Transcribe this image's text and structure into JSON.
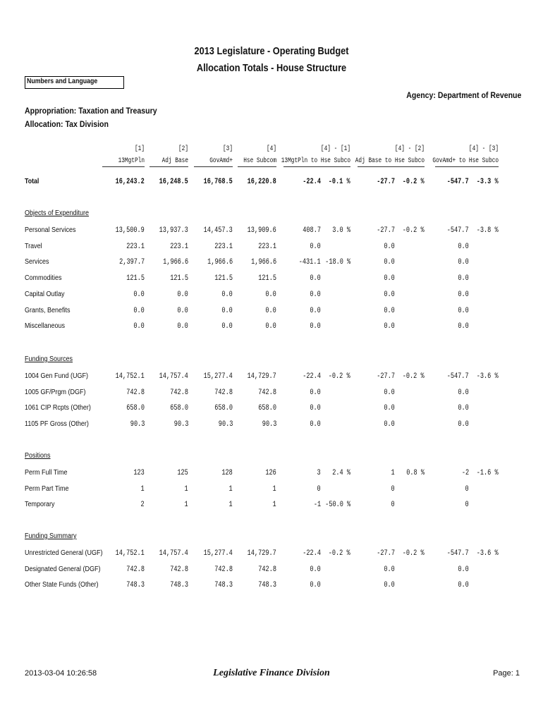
{
  "header": {
    "title": "2013 Legislature - Operating Budget",
    "subtitle": "Allocation Totals - House Structure",
    "box_label": "Numbers and Language",
    "agency": "Agency: Department of Revenue",
    "appropriation": "Appropriation: Taxation and Treasury",
    "allocation": "Allocation: Tax Division"
  },
  "columns": [
    {
      "index": "[1]",
      "name": "13MgtPln"
    },
    {
      "index": "[2]",
      "name": "Adj Base"
    },
    {
      "index": "[3]",
      "name": "GovAmd+"
    },
    {
      "index": "[4]",
      "name": "Hse Subcom"
    },
    {
      "index": "[4] - [1]",
      "name": "13MgtPln to Hse Subco"
    },
    {
      "index": "[4] - [2]",
      "name": "Adj Base to Hse Subco"
    },
    {
      "index": "[4] - [3]",
      "name": "GovAmd+ to Hse Subco"
    }
  ],
  "total": {
    "label": "Total",
    "cells": [
      "16,243.2",
      "16,248.5",
      "16,768.5",
      "16,220.8",
      "-22.4",
      "-0.1 %",
      "-27.7",
      "-0.2 %",
      "-547.7",
      "-3.3 %"
    ]
  },
  "sections": [
    {
      "title": "Objects of Expenditure",
      "rows": [
        {
          "label": "Personal Services",
          "cells": [
            "13,500.9",
            "13,937.3",
            "14,457.3",
            "13,909.6",
            "408.7",
            "3.0 %",
            "-27.7",
            "-0.2 %",
            "-547.7",
            "-3.8 %"
          ]
        },
        {
          "label": "Travel",
          "cells": [
            "223.1",
            "223.1",
            "223.1",
            "223.1",
            "0.0",
            null,
            "0.0",
            null,
            "0.0",
            null
          ]
        },
        {
          "label": "Services",
          "cells": [
            "2,397.7",
            "1,966.6",
            "1,966.6",
            "1,966.6",
            "-431.1",
            "-18.0 %",
            "0.0",
            null,
            "0.0",
            null
          ]
        },
        {
          "label": "Commodities",
          "cells": [
            "121.5",
            "121.5",
            "121.5",
            "121.5",
            "0.0",
            null,
            "0.0",
            null,
            "0.0",
            null
          ]
        },
        {
          "label": "Capital Outlay",
          "cells": [
            "0.0",
            "0.0",
            "0.0",
            "0.0",
            "0.0",
            null,
            "0.0",
            null,
            "0.0",
            null
          ]
        },
        {
          "label": "Grants, Benefits",
          "cells": [
            "0.0",
            "0.0",
            "0.0",
            "0.0",
            "0.0",
            null,
            "0.0",
            null,
            "0.0",
            null
          ]
        },
        {
          "label": "Miscellaneous",
          "cells": [
            "0.0",
            "0.0",
            "0.0",
            "0.0",
            "0.0",
            null,
            "0.0",
            null,
            "0.0",
            null
          ]
        }
      ]
    },
    {
      "title": "Funding Sources",
      "rows": [
        {
          "label": "1004 Gen Fund (UGF)",
          "cells": [
            "14,752.1",
            "14,757.4",
            "15,277.4",
            "14,729.7",
            "-22.4",
            "-0.2 %",
            "-27.7",
            "-0.2 %",
            "-547.7",
            "-3.6 %"
          ]
        },
        {
          "label": "1005 GF/Prgm (DGF)",
          "cells": [
            "742.8",
            "742.8",
            "742.8",
            "742.8",
            "0.0",
            null,
            "0.0",
            null,
            "0.0",
            null
          ]
        },
        {
          "label": "1061 CIP Rcpts (Other)",
          "cells": [
            "658.0",
            "658.0",
            "658.0",
            "658.0",
            "0.0",
            null,
            "0.0",
            null,
            "0.0",
            null
          ]
        },
        {
          "label": "1105 PF Gross (Other)",
          "cells": [
            "90.3",
            "90.3",
            "90.3",
            "90.3",
            "0.0",
            null,
            "0.0",
            null,
            "0.0",
            null
          ]
        }
      ]
    },
    {
      "title": "Positions",
      "rows": [
        {
          "label": "Perm Full Time",
          "cells": [
            "123",
            "125",
            "128",
            "126",
            "3",
            "2.4 %",
            "1",
            "0.8 %",
            "-2",
            "-1.6 %"
          ]
        },
        {
          "label": "Perm Part Time",
          "cells": [
            "1",
            "1",
            "1",
            "1",
            "0",
            null,
            "0",
            null,
            "0",
            null
          ]
        },
        {
          "label": "Temporary",
          "cells": [
            "2",
            "1",
            "1",
            "1",
            "-1",
            "-50.0 %",
            "0",
            null,
            "0",
            null
          ]
        }
      ]
    },
    {
      "title": "Funding Summary",
      "rows": [
        {
          "label": "Unrestricted General (UGF)",
          "cells": [
            "14,752.1",
            "14,757.4",
            "15,277.4",
            "14,729.7",
            "-22.4",
            "-0.2 %",
            "-27.7",
            "-0.2 %",
            "-547.7",
            "-3.6 %"
          ]
        },
        {
          "label": "Designated General (DGF)",
          "cells": [
            "742.8",
            "742.8",
            "742.8",
            "742.8",
            "0.0",
            null,
            "0.0",
            null,
            "0.0",
            null
          ]
        },
        {
          "label": "Other State Funds (Other)",
          "cells": [
            "748.3",
            "748.3",
            "748.3",
            "748.3",
            "0.0",
            null,
            "0.0",
            null,
            "0.0",
            null
          ]
        }
      ]
    }
  ],
  "footer": {
    "timestamp": "2013-03-04 10:26:58",
    "division": "Legislative Finance Division",
    "page": "Page: 1"
  }
}
